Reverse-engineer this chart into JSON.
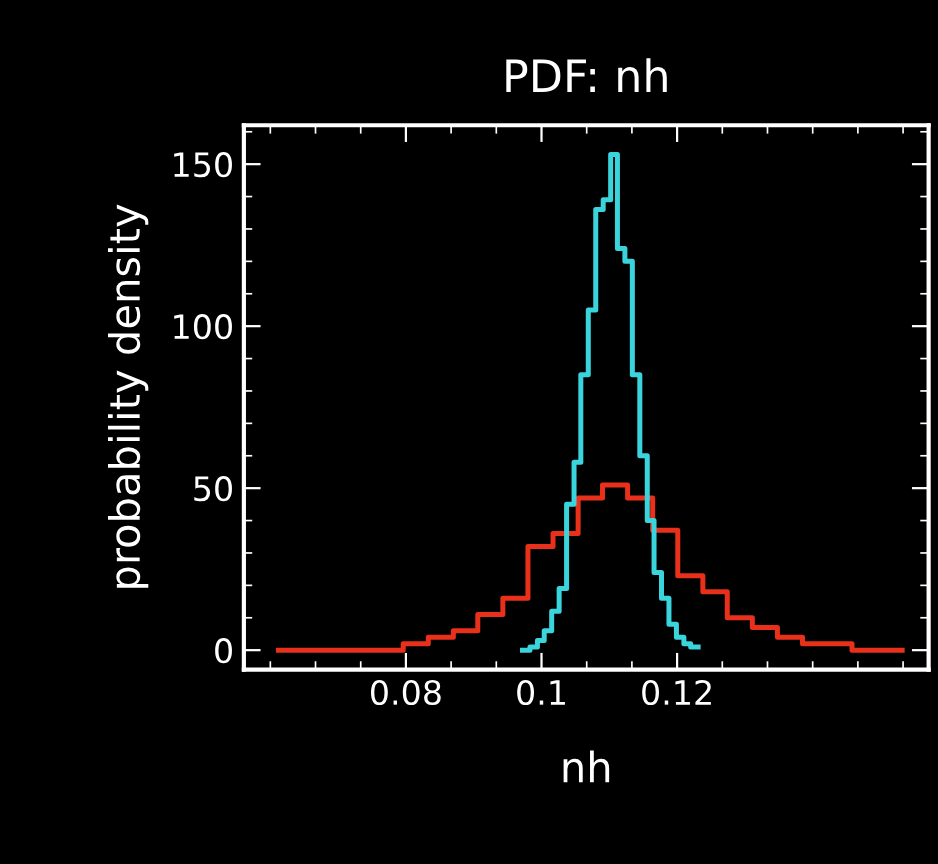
{
  "chart_data": {
    "type": "step",
    "title": "PDF: nh",
    "xlabel": "nh",
    "ylabel": "probability density",
    "xlim": [
      0.0561,
      0.1571
    ],
    "xticks": [
      0.08,
      0.1,
      0.12
    ],
    "ylim": [
      -6,
      162
    ],
    "yticks": [
      0,
      50,
      100,
      150
    ],
    "grid": false,
    "series": [
      {
        "color": "#e8301a",
        "x": [
          0.0612,
          0.0649,
          0.0686,
          0.0722,
          0.0759,
          0.0796,
          0.0833,
          0.087,
          0.0906,
          0.0943,
          0.098,
          0.1017,
          0.1054,
          0.109,
          0.1127,
          0.1164,
          0.1201,
          0.1238,
          0.1274,
          0.1311,
          0.1348,
          0.1385,
          0.1422,
          0.1458,
          0.1495,
          0.1532
        ],
        "values": [
          0,
          0,
          0,
          0,
          0,
          2,
          4,
          6,
          11,
          16,
          32,
          36,
          47,
          51,
          47,
          37,
          23,
          18,
          10,
          7,
          4,
          2,
          2,
          0,
          0,
          0
        ]
      },
      {
        "color": "#3ad4dc",
        "x": [
          0.0972,
          0.0983,
          0.0994,
          0.1004,
          0.1015,
          0.1026,
          0.1037,
          0.1048,
          0.1058,
          0.1069,
          0.108,
          0.1091,
          0.1102,
          0.1112,
          0.1123,
          0.1134,
          0.1145,
          0.1156,
          0.1166,
          0.1177,
          0.1188,
          0.1199,
          0.121,
          0.122,
          0.1231
        ],
        "values": [
          0,
          1,
          3,
          6,
          12,
          19,
          45,
          58,
          85,
          105,
          136,
          139,
          153,
          124,
          120,
          85,
          60,
          40,
          24,
          16,
          8,
          4,
          2,
          1,
          1
        ]
      }
    ]
  }
}
